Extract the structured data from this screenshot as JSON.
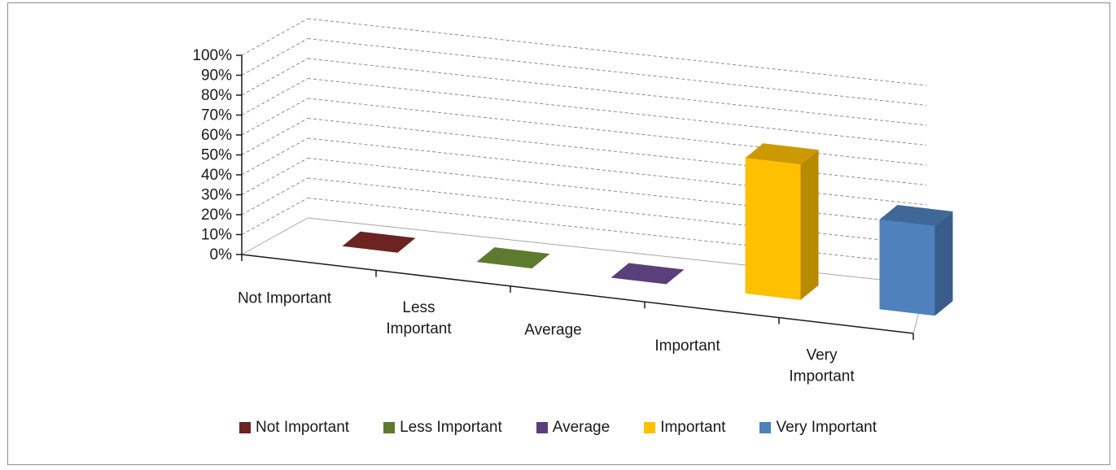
{
  "chart_data": {
    "type": "bar",
    "categories": [
      "Not Important",
      "Less Important",
      "Average",
      "Important",
      "Very Important"
    ],
    "category_axis_lines": [
      [
        "Not Important"
      ],
      [
        "Less",
        "Important"
      ],
      [
        "Average"
      ],
      [
        "Important"
      ],
      [
        "Very",
        "Important"
      ]
    ],
    "values": [
      0,
      0,
      0,
      68,
      45
    ],
    "colors": [
      "#6b2422",
      "#5e7a2e",
      "#5b3f7a",
      "#ffc000",
      "#4f81bd"
    ],
    "y_ticks": [
      "0%",
      "10%",
      "20%",
      "30%",
      "40%",
      "50%",
      "60%",
      "70%",
      "80%",
      "90%",
      "100%"
    ],
    "ylim": [
      0,
      100
    ],
    "grid": true,
    "legend_position": "bottom",
    "style": "3d-column"
  },
  "legend": [
    {
      "label": "Not Important",
      "color": "#6b2422"
    },
    {
      "label": "Less Important",
      "color": "#5e7a2e"
    },
    {
      "label": "Average",
      "color": "#5b3f7a"
    },
    {
      "label": "Important",
      "color": "#ffc000"
    },
    {
      "label": "Very Important",
      "color": "#4f81bd"
    }
  ]
}
